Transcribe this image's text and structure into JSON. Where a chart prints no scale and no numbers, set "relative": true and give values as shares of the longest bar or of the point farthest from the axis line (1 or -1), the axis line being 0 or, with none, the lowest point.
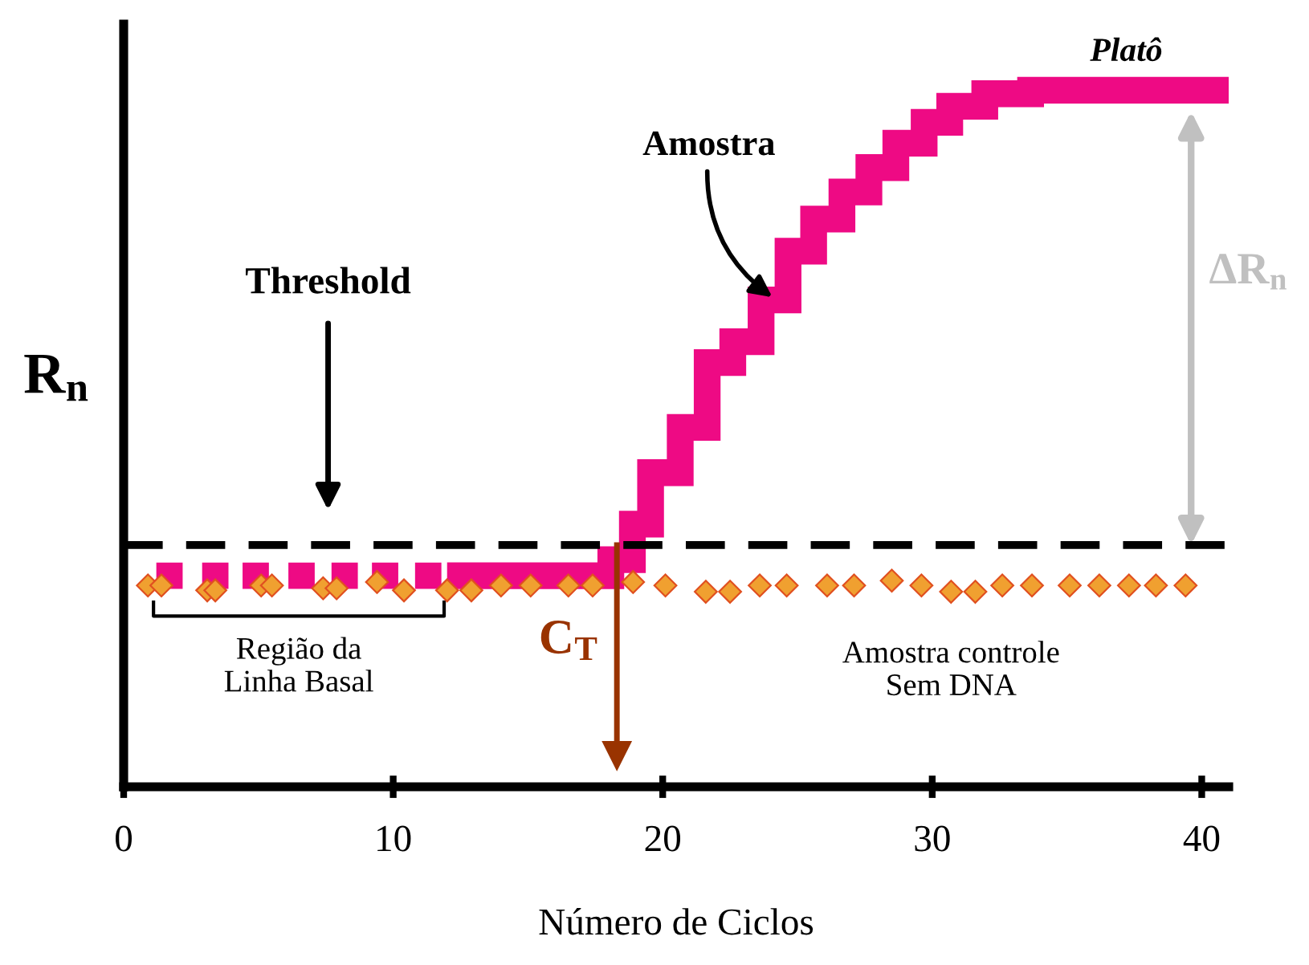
{
  "chart_data": {
    "type": "scatter",
    "relative": true,
    "xlabel": "Número de Ciclos",
    "ylabel": "R$_{n}$",
    "xlim": [
      0,
      41
    ],
    "xticks": [
      0,
      10,
      20,
      30,
      40
    ],
    "grid": false,
    "legend": false,
    "series": [
      {
        "marker": "square",
        "color": "#ee0a84",
        "x": [
          1.7,
          3.4,
          4.9,
          6.6,
          8.2,
          9.7,
          11.3
        ],
        "values": [
          0.303,
          0.303,
          0.303,
          0.303,
          0.303,
          0.303,
          0.303
        ]
      },
      {
        "type": "step",
        "name": "Amostra",
        "color": "#ee0a84",
        "x": [
          12.0,
          13.8,
          15.6,
          17.4,
          18.75,
          19.0,
          20.1,
          21.2,
          22.1,
          23.1,
          24.2,
          25.1,
          26.1,
          27.2,
          28.1,
          29.2,
          30.2,
          31.1,
          32.8,
          34.5,
          36.5,
          38.5,
          41.0
        ],
        "values": [
          0.303,
          0.303,
          0.303,
          0.303,
          0.326,
          0.377,
          0.451,
          0.516,
          0.609,
          0.639,
          0.699,
          0.769,
          0.815,
          0.854,
          0.889,
          0.924,
          0.954,
          0.977,
          0.995,
          1,
          1,
          1,
          1
        ]
      },
      {
        "name": "Amostra controle\nSem DNA",
        "marker": "diamond",
        "color": "#f0a030",
        "x": [
          0.9,
          1.4,
          3.1,
          3.4,
          5.1,
          5.5,
          7.4,
          7.9,
          9.4,
          10.4,
          12.0,
          12.9,
          14.0,
          15.1,
          16.5,
          17.4,
          18.9,
          20.1,
          21.6,
          22.5,
          23.6,
          24.6,
          26.1,
          27.1,
          28.5,
          29.6,
          30.7,
          31.6,
          32.6,
          33.7,
          35.1,
          36.2,
          37.3,
          38.3,
          39.4
        ],
        "values": [
          0.289,
          0.289,
          0.282,
          0.282,
          0.289,
          0.289,
          0.285,
          0.285,
          0.294,
          0.282,
          0.282,
          0.282,
          0.289,
          0.289,
          0.289,
          0.289,
          0.294,
          0.289,
          0.28,
          0.28,
          0.289,
          0.289,
          0.289,
          0.289,
          0.296,
          0.289,
          0.28,
          0.28,
          0.289,
          0.289,
          0.289,
          0.289,
          0.289,
          0.289,
          0.289
        ]
      }
    ],
    "ref_lines": [
      {
        "axis": "y",
        "value": 0.347,
        "color": "#000000",
        "line_style": "dashed"
      },
      {
        "axis": "x",
        "value": 18.3,
        "label": "C$_{T}$",
        "color": "#993300"
      }
    ],
    "annotations": [
      "Threshold",
      {
        "text": "Platô",
        "x": 37.2,
        "y": 1
      },
      "ΔR$_{n}$",
      "Região da\nLinha Basal"
    ]
  }
}
